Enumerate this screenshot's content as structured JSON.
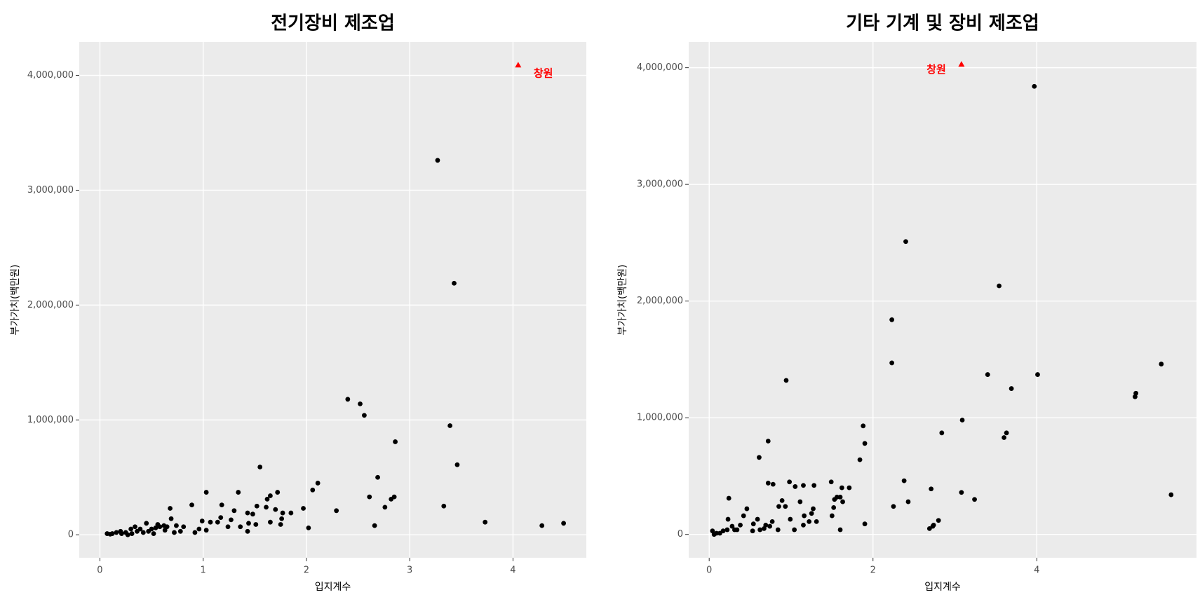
{
  "chart_data": [
    {
      "type": "scatter",
      "title": "전기장비 제조업",
      "x_label": "입지계수",
      "y_label": "부가가치(백만원)",
      "xlim": [
        -0.2,
        4.71
      ],
      "ylim": [
        -200000,
        4290000
      ],
      "xticks": [
        0,
        1,
        2,
        3,
        4
      ],
      "yticks": [
        0,
        {
          "value": 1000000,
          "label": "1,000,000"
        },
        {
          "value": 2000000,
          "label": "2,000,000"
        },
        {
          "value": 3000000,
          "label": "3,000,000"
        },
        {
          "value": 4000000,
          "label": "4,000,000"
        }
      ],
      "grid": true,
      "color": "#000000",
      "x": [
        3.27,
        3.43,
        3.39,
        3.46,
        3.33,
        3.73,
        4.28,
        4.49,
        2.4,
        2.52,
        2.56,
        2.86,
        2.69,
        2.61,
        2.85,
        2.82,
        2.76,
        2.66,
        2.29,
        2.11,
        2.06,
        1.97,
        2.02,
        1.55,
        1.72,
        1.65,
        1.62,
        1.61,
        1.7,
        1.77,
        1.76,
        1.85,
        1.75,
        1.65,
        1.52,
        1.48,
        1.43,
        1.34,
        1.3,
        1.36,
        1.43,
        1.51,
        1.44,
        1.03,
        1.18,
        1.17,
        1.27,
        1.24,
        1.14,
        1.07,
        1.03,
        0.99,
        0.96,
        0.92,
        0.89,
        0.68,
        0.74,
        0.81,
        0.78,
        0.69,
        0.07,
        0.12,
        0.16,
        0.21,
        0.25,
        0.3,
        0.34,
        0.39,
        0.45,
        0.5,
        0.54,
        0.58,
        0.63,
        0.31,
        0.42,
        0.52,
        0.27,
        0.65,
        0.36,
        0.47,
        0.2,
        0.1,
        0.56,
        0.62,
        0.72
      ],
      "y": [
        3260000,
        2190000,
        950000,
        610000,
        250000,
        110000,
        80000,
        100000,
        1180000,
        1140000,
        1040000,
        810000,
        500000,
        330000,
        330000,
        310000,
        240000,
        80000,
        210000,
        450000,
        390000,
        230000,
        60000,
        590000,
        370000,
        340000,
        310000,
        240000,
        220000,
        190000,
        140000,
        190000,
        90000,
        110000,
        250000,
        180000,
        190000,
        370000,
        210000,
        70000,
        30000,
        90000,
        100000,
        370000,
        260000,
        150000,
        130000,
        70000,
        110000,
        110000,
        40000,
        120000,
        50000,
        20000,
        260000,
        230000,
        80000,
        70000,
        30000,
        140000,
        10000,
        10000,
        20000,
        10000,
        20000,
        50000,
        70000,
        50000,
        100000,
        50000,
        60000,
        70000,
        40000,
        10000,
        20000,
        10000,
        0,
        70000,
        30000,
        30000,
        30000,
        5000,
        90000,
        80000,
        20000
      ],
      "highlight": {
        "x": 4.05,
        "y": 4090000,
        "label": "창원",
        "color": "#ff0000"
      }
    },
    {
      "type": "scatter",
      "title": "기타 기계 및 장비 제조업",
      "x_label": "입지계수",
      "y_label": "부가가치(백만원)",
      "xlim": [
        -0.25,
        5.95
      ],
      "ylim": [
        -200000,
        4220000
      ],
      "xticks": [
        0,
        2,
        4
      ],
      "yticks": [
        0,
        {
          "value": 1000000,
          "label": "1,000,000"
        },
        {
          "value": 2000000,
          "label": "2,000,000"
        },
        {
          "value": 3000000,
          "label": "3,000,000"
        },
        {
          "value": 4000000,
          "label": "4,000,000"
        }
      ],
      "grid": true,
      "color": "#000000",
      "x": [
        3.97,
        2.4,
        3.54,
        2.23,
        2.23,
        0.94,
        3.4,
        4.01,
        3.69,
        5.52,
        5.21,
        5.2,
        5.64,
        3.09,
        1.88,
        1.9,
        1.84,
        3.6,
        3.63,
        2.84,
        0.72,
        0.61,
        2.38,
        2.43,
        2.25,
        2.71,
        3.08,
        3.24,
        2.8,
        2.73,
        2.69,
        2.74,
        1.9,
        1.49,
        1.62,
        1.71,
        1.6,
        1.56,
        1.53,
        1.63,
        1.52,
        1.5,
        1.6,
        1.28,
        1.15,
        0.98,
        1.05,
        0.78,
        0.72,
        0.89,
        0.93,
        1.11,
        1.27,
        1.25,
        1.22,
        1.31,
        1.16,
        1.15,
        0.99,
        1.04,
        0.85,
        0.77,
        0.84,
        0.69,
        0.62,
        0.54,
        0.59,
        0.53,
        0.46,
        0.42,
        0.38,
        0.31,
        0.24,
        0.23,
        0.17,
        0.09,
        0.04,
        0.06,
        0.13,
        0.22,
        0.28,
        0.34,
        0.74,
        0.67
      ],
      "y": [
        3840000,
        2510000,
        2130000,
        1840000,
        1470000,
        1320000,
        1370000,
        1370000,
        1250000,
        1460000,
        1210000,
        1180000,
        340000,
        980000,
        930000,
        780000,
        640000,
        830000,
        870000,
        870000,
        800000,
        660000,
        460000,
        280000,
        240000,
        390000,
        360000,
        300000,
        120000,
        70000,
        50000,
        80000,
        90000,
        450000,
        400000,
        400000,
        320000,
        320000,
        300000,
        280000,
        230000,
        160000,
        40000,
        420000,
        420000,
        450000,
        410000,
        430000,
        440000,
        290000,
        240000,
        280000,
        220000,
        180000,
        110000,
        110000,
        160000,
        80000,
        130000,
        40000,
        240000,
        110000,
        40000,
        80000,
        40000,
        90000,
        130000,
        30000,
        220000,
        160000,
        80000,
        40000,
        310000,
        130000,
        30000,
        10000,
        30000,
        0,
        10000,
        40000,
        70000,
        40000,
        70000,
        50000
      ],
      "highlight": {
        "x": 3.08,
        "y": 4030000,
        "label": "창원",
        "color": "#ff0000"
      }
    }
  ]
}
